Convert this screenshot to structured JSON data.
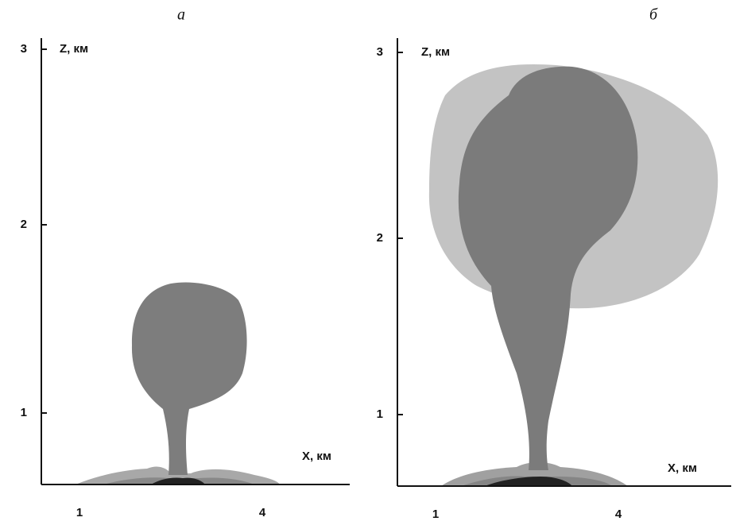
{
  "panels": [
    {
      "label": "а",
      "z_label": "Z, км",
      "x_label": "X, км",
      "z_ticks": [
        3,
        2,
        1
      ],
      "x_ticks": [
        1,
        4
      ]
    },
    {
      "label": "б",
      "z_label": "Z, км",
      "x_label": "X, км",
      "z_ticks": [
        3,
        2,
        1
      ],
      "x_ticks": [
        1,
        4
      ]
    }
  ]
}
